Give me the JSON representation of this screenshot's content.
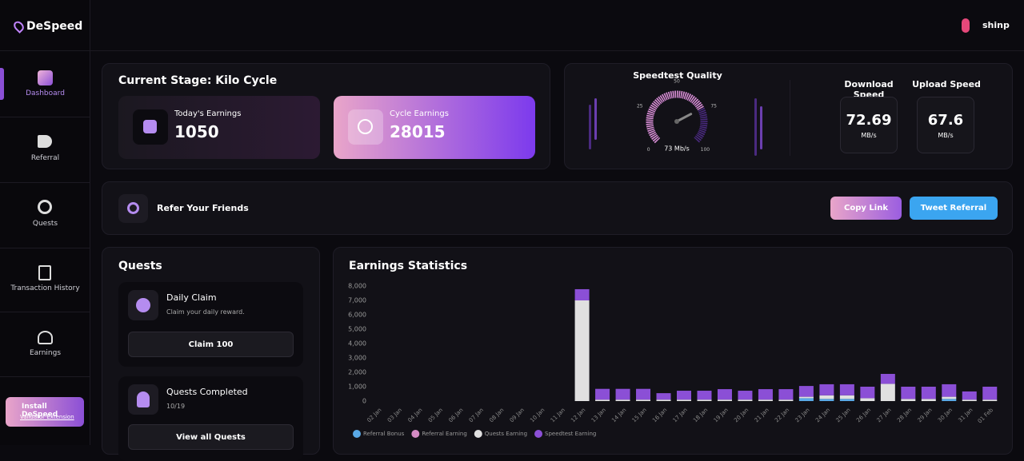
{
  "sidebar": {
    "logo": "DeSpeed",
    "nav": [
      "Dashboard",
      "Referral",
      "Quests",
      "Transaction History",
      "Earnings"
    ],
    "install": {
      "title": "Install DeSpeed",
      "subtitle": "Validator Extension"
    }
  },
  "header": {
    "user": "shinp"
  },
  "stage": {
    "title": "Current Stage: Kilo Cycle",
    "today": {
      "label": "Today's Earnings",
      "value": 1050
    },
    "cycle": {
      "label": "Cycle Earnings",
      "value": 28015
    }
  },
  "speedtest": {
    "title": "Speedtest Quality",
    "gauge": {
      "value": 73,
      "value_label": "73 Mb/s",
      "range": [
        0,
        100
      ],
      "ticks": [
        0,
        25,
        50,
        75,
        100
      ]
    },
    "download": {
      "label": "Download Speed",
      "value": 72.69,
      "unit": "MB/s"
    },
    "upload": {
      "label": "Upload Speed",
      "value": 67.6,
      "unit": "MB/s"
    }
  },
  "refer": {
    "title": "Refer Your Friends",
    "copy": "Copy Link",
    "tweet": "Tweet Referral"
  },
  "quests": {
    "title": "Quests",
    "daily": {
      "title": "Daily Claim",
      "subtitle": "Claim your daily reward.",
      "button": "Claim 100"
    },
    "completed": {
      "title": "Quests Completed",
      "progress": "10/19",
      "button": "View all Quests"
    }
  },
  "chart_data": {
    "type": "stacked_bar",
    "title": "Earnings Statistics",
    "categories": [
      "02 Jan",
      "03 Jan",
      "04 Jan",
      "05 Jan",
      "06 Jan",
      "07 Jan",
      "08 Jan",
      "09 Jan",
      "10 Jan",
      "11 Jan",
      "12 Jan",
      "13 Jan",
      "14 Jan",
      "15 Jan",
      "16 Jan",
      "17 Jan",
      "18 Jan",
      "19 Jan",
      "20 Jan",
      "21 Jan",
      "22 Jan",
      "23 Jan",
      "24 Jan",
      "25 Jan",
      "26 Jan",
      "27 Jan",
      "28 Jan",
      "29 Jan",
      "30 Jan",
      "31 Jan",
      "01 Feb"
    ],
    "series": [
      {
        "name": "Referral Bonus",
        "color": "#5aa9e6",
        "values": [
          0,
          0,
          0,
          0,
          0,
          0,
          0,
          0,
          0,
          0,
          0,
          0,
          0,
          0,
          0,
          0,
          0,
          0,
          0,
          0,
          0,
          200,
          150,
          150,
          0,
          0,
          0,
          0,
          150,
          0,
          0
        ]
      },
      {
        "name": "Referral Earning",
        "color": "#d48bc4",
        "values": [
          0,
          0,
          0,
          0,
          0,
          0,
          0,
          0,
          0,
          0,
          0,
          0,
          0,
          0,
          0,
          0,
          0,
          0,
          0,
          0,
          0,
          0,
          0,
          0,
          0,
          0,
          0,
          0,
          0,
          0,
          0
        ]
      },
      {
        "name": "Quests Earning",
        "color": "#e0e0e0",
        "values": [
          0,
          0,
          0,
          0,
          0,
          0,
          0,
          0,
          0,
          0,
          7000,
          100,
          100,
          100,
          100,
          100,
          100,
          100,
          100,
          100,
          100,
          100,
          250,
          250,
          200,
          1200,
          150,
          150,
          150,
          100,
          100
        ]
      },
      {
        "name": "Speedtest Earning",
        "color": "#8b4fd6",
        "values": [
          0,
          0,
          0,
          0,
          0,
          0,
          0,
          0,
          0,
          0,
          780,
          750,
          750,
          750,
          450,
          620,
          620,
          730,
          620,
          730,
          730,
          750,
          770,
          770,
          800,
          690,
          850,
          850,
          870,
          570,
          900
        ]
      }
    ],
    "ylim": [
      0,
      8000
    ],
    "yticks": [
      0,
      {
        "value": 1000,
        "label": "1,000"
      },
      {
        "value": 2000,
        "label": "2,000"
      },
      {
        "value": 3000,
        "label": "3,000"
      },
      {
        "value": 4000,
        "label": "4,000"
      },
      {
        "value": 5000,
        "label": "5,000"
      },
      {
        "value": 6000,
        "label": "6,000"
      },
      {
        "value": 7000,
        "label": "7,000"
      },
      {
        "value": 8000,
        "label": "8,000"
      }
    ],
    "grid": false
  }
}
